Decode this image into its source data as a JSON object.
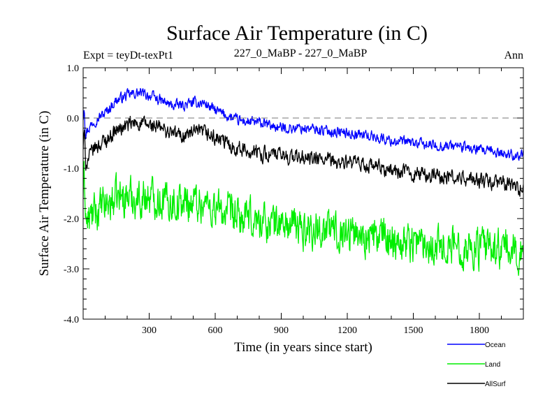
{
  "header": {
    "title": "Surface Air Temperature (in C)",
    "expt": "Expt = teyDt-texPt1",
    "comparison": "227_0_MaBP - 227_0_MaBP",
    "period": "Ann"
  },
  "chart_data": {
    "type": "line",
    "title": "Surface Air Temperature (in C)",
    "xlabel": "Time (in years since start)",
    "ylabel": "Surface Air Temperature (in C)",
    "xlim": [
      0,
      2000
    ],
    "ylim": [
      -4.0,
      1.0
    ],
    "x_ticks": [
      300,
      600,
      900,
      1200,
      1500,
      1800
    ],
    "x_tick_labels": [
      "300",
      "600",
      "900",
      "1200",
      "1500",
      "1800"
    ],
    "y_ticks": [
      1.0,
      0.0,
      -1.0,
      -2.0,
      -3.0,
      -4.0
    ],
    "y_tick_labels": [
      "1.0",
      "0.0",
      "-1.0",
      "-2.0",
      "-3.0",
      "-4.0"
    ],
    "zero_line": true,
    "legend_position": "bottom-right, below plot",
    "series": [
      {
        "name": "Ocean",
        "color": "#0000ff",
        "noise": 0.09,
        "anchors": [
          [
            0,
            0.0
          ],
          [
            5,
            0.3
          ],
          [
            10,
            -0.3
          ],
          [
            50,
            -0.05
          ],
          [
            100,
            0.1
          ],
          [
            150,
            0.35
          ],
          [
            200,
            0.45
          ],
          [
            250,
            0.5
          ],
          [
            300,
            0.45
          ],
          [
            350,
            0.35
          ],
          [
            400,
            0.25
          ],
          [
            450,
            0.25
          ],
          [
            500,
            0.3
          ],
          [
            550,
            0.3
          ],
          [
            600,
            0.15
          ],
          [
            650,
            0.05
          ],
          [
            700,
            -0.05
          ],
          [
            800,
            -0.1
          ],
          [
            900,
            -0.2
          ],
          [
            1000,
            -0.2
          ],
          [
            1100,
            -0.25
          ],
          [
            1200,
            -0.3
          ],
          [
            1300,
            -0.35
          ],
          [
            1400,
            -0.45
          ],
          [
            1500,
            -0.5
          ],
          [
            1600,
            -0.55
          ],
          [
            1700,
            -0.55
          ],
          [
            1800,
            -0.65
          ],
          [
            1900,
            -0.7
          ],
          [
            2000,
            -0.75
          ]
        ]
      },
      {
        "name": "Land",
        "color": "#00ee00",
        "noise": 0.33,
        "anchors": [
          [
            0,
            -1.5
          ],
          [
            5,
            -1.2
          ],
          [
            15,
            -2.1
          ],
          [
            50,
            -1.9
          ],
          [
            100,
            -1.75
          ],
          [
            150,
            -1.6
          ],
          [
            200,
            -1.55
          ],
          [
            250,
            -1.6
          ],
          [
            300,
            -1.55
          ],
          [
            350,
            -1.6
          ],
          [
            400,
            -1.65
          ],
          [
            450,
            -1.7
          ],
          [
            500,
            -1.65
          ],
          [
            550,
            -1.7
          ],
          [
            600,
            -1.8
          ],
          [
            650,
            -1.9
          ],
          [
            700,
            -2.0
          ],
          [
            800,
            -2.05
          ],
          [
            900,
            -2.1
          ],
          [
            1000,
            -2.2
          ],
          [
            1100,
            -2.2
          ],
          [
            1200,
            -2.25
          ],
          [
            1300,
            -2.35
          ],
          [
            1400,
            -2.4
          ],
          [
            1500,
            -2.45
          ],
          [
            1600,
            -2.5
          ],
          [
            1700,
            -2.55
          ],
          [
            1800,
            -2.6
          ],
          [
            1900,
            -2.6
          ],
          [
            2000,
            -2.7
          ]
        ]
      },
      {
        "name": "AllSurf",
        "color": "#000000",
        "noise": 0.13,
        "anchors": [
          [
            0,
            -0.6
          ],
          [
            5,
            -0.3
          ],
          [
            12,
            -0.9
          ],
          [
            50,
            -0.6
          ],
          [
            100,
            -0.45
          ],
          [
            150,
            -0.25
          ],
          [
            200,
            -0.15
          ],
          [
            250,
            -0.1
          ],
          [
            300,
            -0.15
          ],
          [
            350,
            -0.2
          ],
          [
            400,
            -0.3
          ],
          [
            450,
            -0.35
          ],
          [
            500,
            -0.3
          ],
          [
            550,
            -0.3
          ],
          [
            600,
            -0.4
          ],
          [
            650,
            -0.5
          ],
          [
            700,
            -0.6
          ],
          [
            800,
            -0.7
          ],
          [
            900,
            -0.75
          ],
          [
            1000,
            -0.8
          ],
          [
            1100,
            -0.85
          ],
          [
            1200,
            -0.9
          ],
          [
            1300,
            -0.95
          ],
          [
            1400,
            -1.05
          ],
          [
            1500,
            -1.1
          ],
          [
            1600,
            -1.15
          ],
          [
            1700,
            -1.2
          ],
          [
            1800,
            -1.25
          ],
          [
            1900,
            -1.3
          ],
          [
            2000,
            -1.4
          ]
        ]
      }
    ]
  }
}
